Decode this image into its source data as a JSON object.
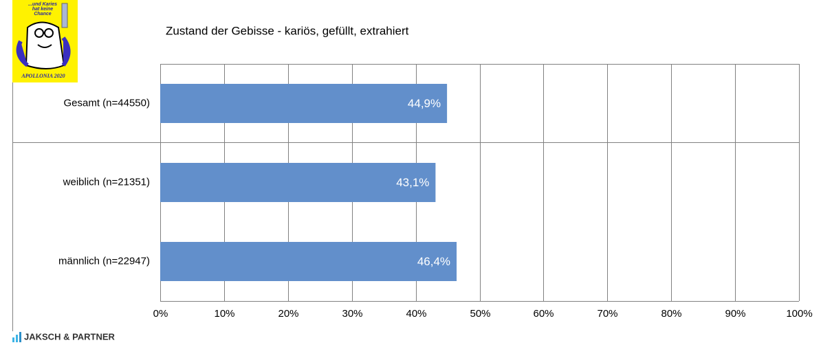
{
  "logo": {
    "lines": [
      "...und Karies",
      "hat keine",
      "Chance"
    ],
    "caption": "APOLLONIA 2020"
  },
  "footer": "JAKSCH & PARTNER",
  "chart_data": {
    "type": "hbar",
    "title": "Zustand der Gebisse - kariös, gefüllt, extrahiert",
    "categories": [
      "Gesamt (n=44550)",
      "weiblich (n=21351)",
      "männlich (n=22947)"
    ],
    "values": [
      44.9,
      43.1,
      46.4
    ],
    "value_labels": [
      "44,9%",
      "43,1%",
      "46,4%"
    ],
    "color": "#628fcb",
    "xlim": [
      0,
      100
    ],
    "xticks": [
      {
        "value": 0,
        "label": "0%"
      },
      {
        "value": 10,
        "label": "10%"
      },
      {
        "value": 20,
        "label": "20%"
      },
      {
        "value": 30,
        "label": "30%"
      },
      {
        "value": 40,
        "label": "40%"
      },
      {
        "value": 50,
        "label": "50%"
      },
      {
        "value": 60,
        "label": "60%"
      },
      {
        "value": 70,
        "label": "70%"
      },
      {
        "value": 80,
        "label": "80%"
      },
      {
        "value": 90,
        "label": "90%"
      },
      {
        "value": 100,
        "label": "100%"
      }
    ],
    "grid": true
  }
}
